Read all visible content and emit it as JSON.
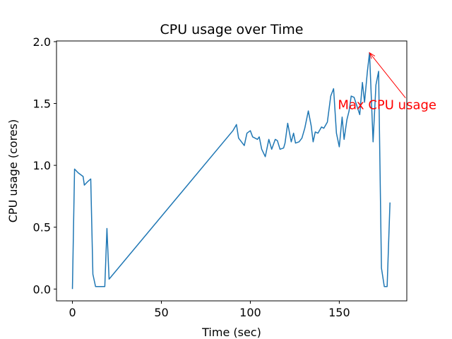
{
  "chart_data": {
    "type": "line",
    "title": "CPU usage over Time",
    "x_label": "Time (sec)",
    "y_label": "CPU usage (cores)",
    "x": [
      0,
      1.2,
      3.2,
      6,
      6.7,
      8.7,
      10.3,
      11.5,
      13,
      18.2,
      19.4,
      20.6,
      90.2,
      92.2,
      93.4,
      96.6,
      98.1,
      100,
      101.3,
      104,
      105,
      106.4,
      108.4,
      110.4,
      112,
      114,
      115.2,
      116.7,
      118.7,
      119.5,
      121,
      123,
      124.3,
      125.4,
      127.4,
      129,
      130.6,
      132.6,
      134.2,
      135.3,
      136.5,
      138,
      140,
      141.3,
      143.3,
      145.2,
      146.8,
      148.4,
      150,
      151.6,
      152.7,
      154.3,
      155.5,
      156.7,
      158.3,
      159.9,
      161.5,
      163,
      164.2,
      165.8,
      167,
      169,
      170.6,
      172.1,
      173.7,
      175.3,
      176.9,
      178.5
    ],
    "series": [
      {
        "name": "CPU usage",
        "color": "#1f77b4",
        "values": [
          0,
          0.97,
          0.94,
          0.91,
          0.84,
          0.87,
          0.89,
          0.12,
          0.02,
          0.02,
          0.49,
          0.08,
          1.28,
          1.33,
          1.22,
          1.16,
          1.26,
          1.28,
          1.23,
          1.21,
          1.23,
          1.13,
          1.07,
          1.21,
          1.13,
          1.21,
          1.2,
          1.13,
          1.14,
          1.18,
          1.34,
          1.19,
          1.26,
          1.18,
          1.19,
          1.22,
          1.3,
          1.44,
          1.32,
          1.19,
          1.27,
          1.26,
          1.31,
          1.3,
          1.35,
          1.56,
          1.62,
          1.26,
          1.15,
          1.39,
          1.21,
          1.37,
          1.44,
          1.56,
          1.55,
          1.48,
          1.41,
          1.67,
          1.51,
          1.76,
          1.91,
          1.19,
          1.65,
          1.76,
          0.17,
          0.02,
          0.02,
          0.7
        ]
      }
    ],
    "xlim": [
      -8.95,
      187.95
    ],
    "ylim": [
      -0.0955,
      2.0055
    ],
    "xticks": [
      0,
      50,
      100,
      150
    ],
    "yticks": [
      {
        "value": 0,
        "label": "0.0"
      },
      {
        "value": 0.5,
        "label": "0.5"
      },
      {
        "value": 1,
        "label": "1.0"
      },
      {
        "value": 1.5,
        "label": "1.5"
      },
      {
        "value": 2,
        "label": "2.0"
      }
    ],
    "annotations": [
      {
        "text": "Max CPU usage",
        "x": 167,
        "y": 1.91,
        "color": "red"
      }
    ]
  }
}
